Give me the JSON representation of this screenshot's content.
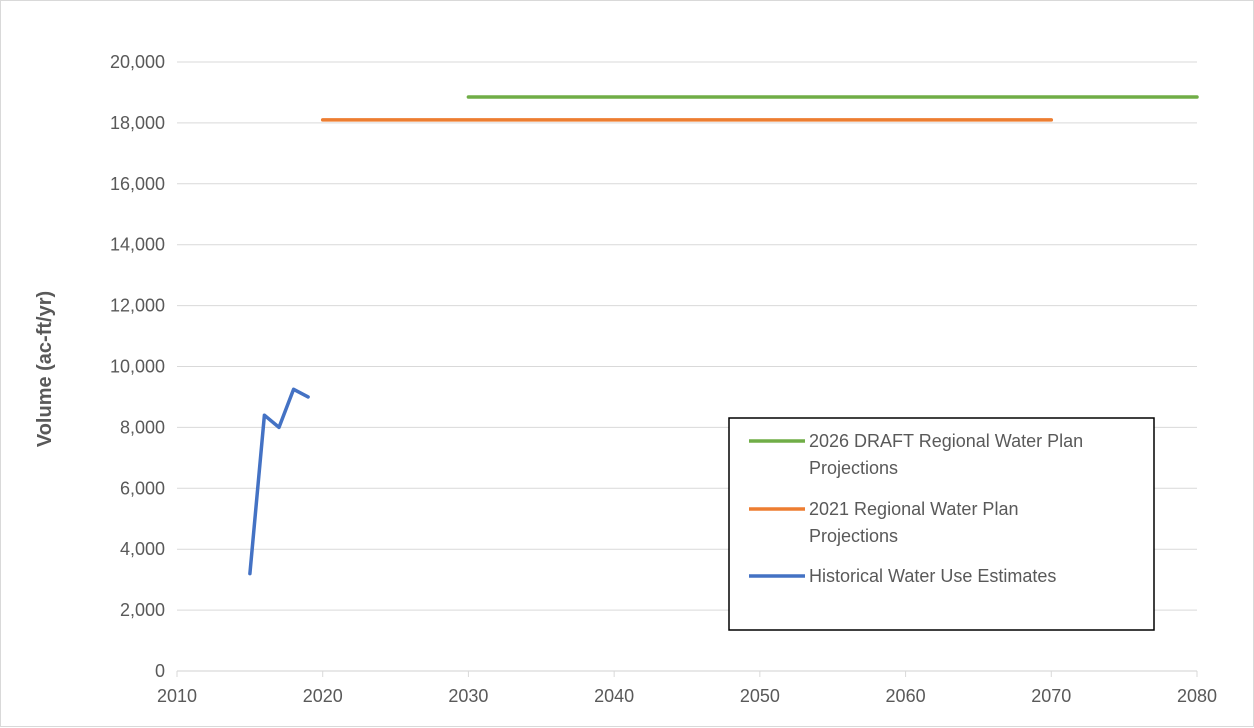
{
  "chart_data": {
    "type": "line",
    "title": "",
    "xlabel": "",
    "ylabel": "Volume (ac-ft/yr)",
    "xlim": [
      2010,
      2080
    ],
    "ylim": [
      0,
      20000
    ],
    "x_ticks": [
      2010,
      2020,
      2030,
      2040,
      2050,
      2060,
      2070,
      2080
    ],
    "y_ticks": [
      0,
      2000,
      4000,
      6000,
      8000,
      10000,
      12000,
      14000,
      16000,
      18000,
      20000
    ],
    "y_tick_labels": [
      "0",
      "2,000",
      "4,000",
      "6,000",
      "8,000",
      "10,000",
      "12,000",
      "14,000",
      "16,000",
      "18,000",
      "20,000"
    ],
    "grid": "horizontal",
    "legend_position": "bottom-right",
    "series": [
      {
        "name": "2026 DRAFT Regional Water Plan Projections",
        "legend_lines": [
          "2026 DRAFT Regional Water Plan",
          "Projections"
        ],
        "color": "#70ad47",
        "x": [
          2030,
          2080
        ],
        "y": [
          18850,
          18850
        ]
      },
      {
        "name": "2021 Regional Water Plan Projections",
        "legend_lines": [
          "2021 Regional Water Plan",
          "Projections"
        ],
        "color": "#ed7d31",
        "x": [
          2020,
          2070
        ],
        "y": [
          18100,
          18100
        ]
      },
      {
        "name": "Historical Water Use Estimates",
        "legend_lines": [
          "Historical Water Use Estimates"
        ],
        "color": "#4472c4",
        "x": [
          2015,
          2016,
          2017,
          2018,
          2019
        ],
        "y": [
          3200,
          8400,
          8000,
          9250,
          9000
        ]
      }
    ]
  }
}
